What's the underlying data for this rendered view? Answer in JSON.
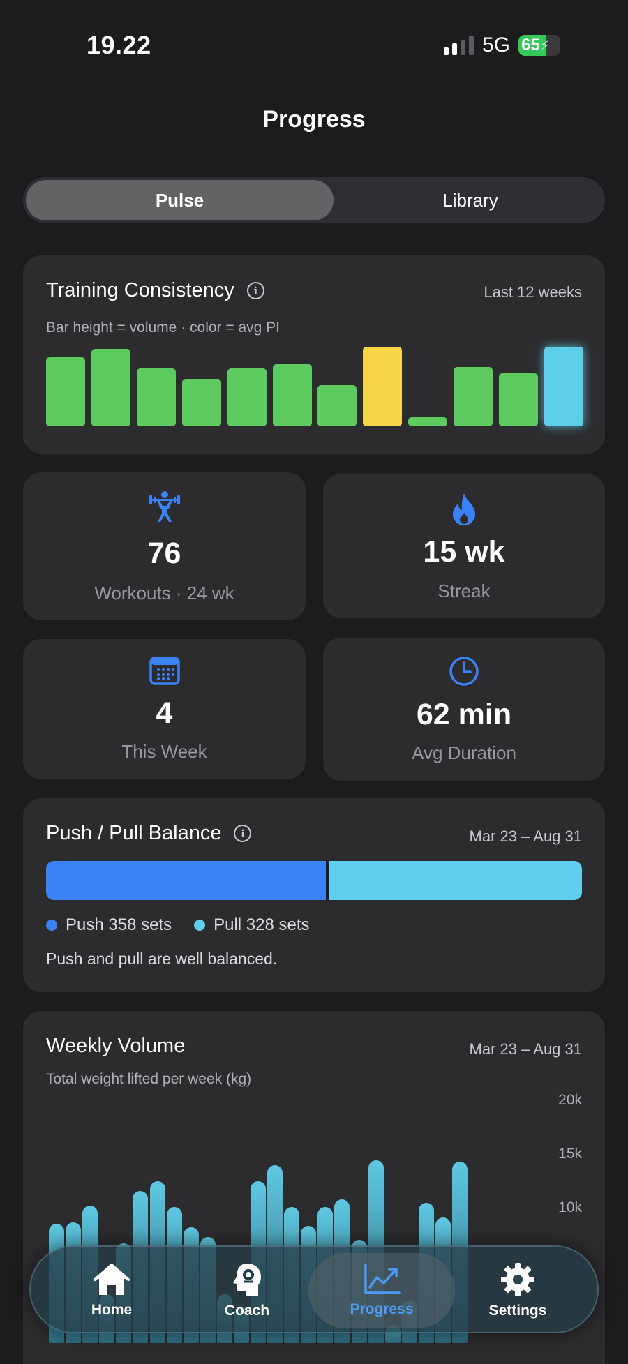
{
  "status_bar": {
    "time": "19.22",
    "network": "5G",
    "battery_level": "65",
    "battery_fraction": 0.65
  },
  "page": {
    "title": "Progress"
  },
  "segments": {
    "options": [
      "Pulse",
      "Library"
    ],
    "selected": "Pulse"
  },
  "consistency": {
    "title": "Training Consistency",
    "range": "Last 12 weeks",
    "subtitle": "Bar height = volume · color = avg PI",
    "bars": [
      {
        "value": 0.69,
        "color": "#5ecb60"
      },
      {
        "value": 0.77,
        "color": "#5ecb60"
      },
      {
        "value": 0.58,
        "color": "#5ecb60"
      },
      {
        "value": 0.47,
        "color": "#5ecb60"
      },
      {
        "value": 0.58,
        "color": "#5ecb60"
      },
      {
        "value": 0.62,
        "color": "#5ecb60"
      },
      {
        "value": 0.41,
        "color": "#5ecb60"
      },
      {
        "value": 0.79,
        "color": "#f7d548"
      },
      {
        "value": 0.09,
        "color": "#5ecb60"
      },
      {
        "value": 0.59,
        "color": "#5ecb60"
      },
      {
        "value": 0.53,
        "color": "#5ecb60"
      },
      {
        "value": 0.79,
        "color": "#5ecfe8"
      }
    ]
  },
  "stats": {
    "workouts": {
      "value": "76",
      "label": "Workouts · 24 wk",
      "icon": "weightlifter-icon"
    },
    "streak": {
      "value": "15 wk",
      "label": "Streak",
      "icon": "flame-icon"
    },
    "this_week": {
      "value": "4",
      "label": "This Week",
      "icon": "calendar-icon"
    },
    "avg_duration": {
      "value": "62 min",
      "label": "Avg Duration",
      "icon": "clock-icon"
    }
  },
  "balance": {
    "title": "Push / Pull Balance",
    "range": "Mar 23 – Aug 31",
    "push_label": "Push 358 sets",
    "pull_label": "Pull 328 sets",
    "push_sets": 358,
    "pull_sets": 328,
    "note": "Push and pull are well balanced.",
    "push_color": "#3b82f6",
    "pull_color": "#5fcfed"
  },
  "weekly_volume": {
    "title": "Weekly Volume",
    "range": "Mar 23 – Aug 31",
    "subtitle": "Total weight lifted per week (kg)",
    "y_ticks": [
      "20k",
      "15k",
      "10k"
    ]
  },
  "chart_data": {
    "type": "bar",
    "title": "Weekly Volume",
    "subtitle": "Total weight lifted per week (kg)",
    "ylim": [
      0,
      20000
    ],
    "y_ticks": [
      "20k",
      "15k",
      "10k"
    ],
    "values": [
      9800,
      9900,
      11300,
      4000,
      8200,
      12500,
      13300,
      11200,
      9500,
      8700,
      4000,
      3000,
      13300,
      14600,
      11200,
      9600,
      11200,
      11800,
      8500,
      15000,
      1500,
      3500,
      11500,
      10300,
      14900
    ]
  },
  "tabbar": {
    "items": [
      {
        "label": "Home",
        "icon": "house-icon"
      },
      {
        "label": "Coach",
        "icon": "brain-head-icon"
      },
      {
        "label": "Progress",
        "icon": "chart-line-icon"
      },
      {
        "label": "Settings",
        "icon": "gear-icon"
      }
    ],
    "active": "Progress"
  }
}
